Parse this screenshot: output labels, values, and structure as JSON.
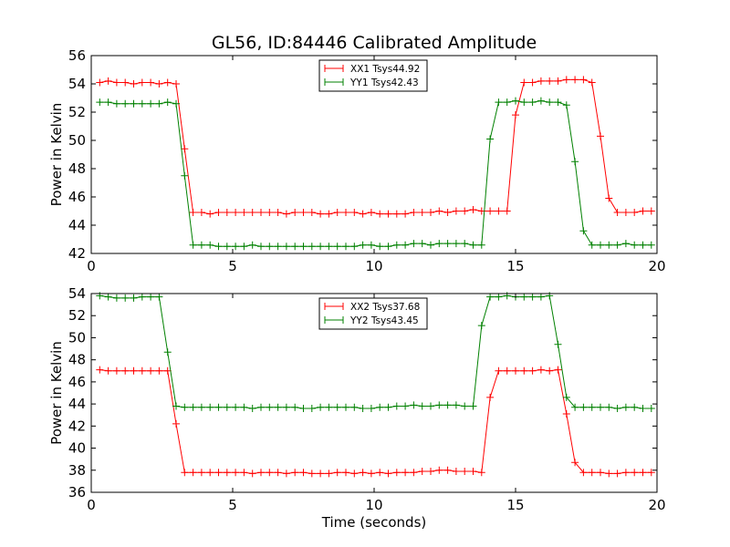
{
  "title": "GL56, ID:84446 Calibrated Amplitude",
  "chart_data": [
    {
      "type": "line",
      "xlabel": "",
      "ylabel": "Power in Kelvin",
      "xlim": [
        0,
        20
      ],
      "ylim": [
        42,
        56
      ],
      "xticks": [
        0,
        5,
        10,
        15,
        20
      ],
      "yticks": [
        42,
        44,
        46,
        48,
        50,
        52,
        54,
        56
      ],
      "grid": false,
      "legend_position": "top-center",
      "x": [
        0.3,
        0.6,
        0.9,
        1.2,
        1.5,
        1.8,
        2.1,
        2.4,
        2.7,
        3.0,
        3.3,
        3.6,
        3.9,
        4.2,
        4.5,
        4.8,
        5.1,
        5.4,
        5.7,
        6.0,
        6.3,
        6.6,
        6.9,
        7.2,
        7.5,
        7.8,
        8.1,
        8.4,
        8.7,
        9.0,
        9.3,
        9.6,
        9.9,
        10.2,
        10.5,
        10.8,
        11.1,
        11.4,
        11.7,
        12.0,
        12.3,
        12.6,
        12.9,
        13.2,
        13.5,
        13.8,
        14.1,
        14.4,
        14.7,
        15.0,
        15.3,
        15.6,
        15.9,
        16.2,
        16.5,
        16.8,
        17.1,
        17.4,
        17.7,
        18.0,
        18.3,
        18.6,
        18.9,
        19.2,
        19.5,
        19.8
      ],
      "series": [
        {
          "name": "XX1 Tsys44.92",
          "color": "#ff0000",
          "values": [
            54.1,
            54.2,
            54.1,
            54.1,
            54.0,
            54.1,
            54.1,
            54.0,
            54.1,
            54.0,
            49.4,
            44.9,
            44.9,
            44.8,
            44.9,
            44.9,
            44.9,
            44.9,
            44.9,
            44.9,
            44.9,
            44.9,
            44.8,
            44.9,
            44.9,
            44.9,
            44.8,
            44.8,
            44.9,
            44.9,
            44.9,
            44.8,
            44.9,
            44.8,
            44.8,
            44.8,
            44.8,
            44.9,
            44.9,
            44.9,
            45.0,
            44.9,
            45.0,
            45.0,
            45.1,
            45.0,
            45.0,
            45.0,
            45.0,
            51.8,
            54.1,
            54.1,
            54.2,
            54.2,
            54.2,
            54.3,
            54.3,
            54.3,
            54.1,
            50.3,
            45.9,
            44.9,
            44.9,
            44.9,
            45.0,
            45.0
          ]
        },
        {
          "name": "YY1 Tsys42.43",
          "color": "#008000",
          "values": [
            52.7,
            52.7,
            52.6,
            52.6,
            52.6,
            52.6,
            52.6,
            52.6,
            52.7,
            52.6,
            47.5,
            42.6,
            42.6,
            42.6,
            42.5,
            42.5,
            42.5,
            42.5,
            42.6,
            42.5,
            42.5,
            42.5,
            42.5,
            42.5,
            42.5,
            42.5,
            42.5,
            42.5,
            42.5,
            42.5,
            42.5,
            42.6,
            42.6,
            42.5,
            42.5,
            42.6,
            42.6,
            42.7,
            42.7,
            42.6,
            42.7,
            42.7,
            42.7,
            42.7,
            42.6,
            42.6,
            50.1,
            52.7,
            52.7,
            52.8,
            52.7,
            52.7,
            52.8,
            52.7,
            52.7,
            52.5,
            48.5,
            43.6,
            42.6,
            42.6,
            42.6,
            42.6,
            42.7,
            42.6,
            42.6,
            42.6
          ]
        }
      ]
    },
    {
      "type": "line",
      "xlabel": "Time (seconds)",
      "ylabel": "Power in Kelvin",
      "xlim": [
        0,
        20
      ],
      "ylim": [
        36,
        54
      ],
      "xticks": [
        0,
        5,
        10,
        15,
        20
      ],
      "yticks": [
        36,
        38,
        40,
        42,
        44,
        46,
        48,
        50,
        52,
        54
      ],
      "grid": false,
      "legend_position": "top-center",
      "x": [
        0.3,
        0.6,
        0.9,
        1.2,
        1.5,
        1.8,
        2.1,
        2.4,
        2.7,
        3.0,
        3.3,
        3.6,
        3.9,
        4.2,
        4.5,
        4.8,
        5.1,
        5.4,
        5.7,
        6.0,
        6.3,
        6.6,
        6.9,
        7.2,
        7.5,
        7.8,
        8.1,
        8.4,
        8.7,
        9.0,
        9.3,
        9.6,
        9.9,
        10.2,
        10.5,
        10.8,
        11.1,
        11.4,
        11.7,
        12.0,
        12.3,
        12.6,
        12.9,
        13.2,
        13.5,
        13.8,
        14.1,
        14.4,
        14.7,
        15.0,
        15.3,
        15.6,
        15.9,
        16.2,
        16.5,
        16.8,
        17.1,
        17.4,
        17.7,
        18.0,
        18.3,
        18.6,
        18.9,
        19.2,
        19.5,
        19.8
      ],
      "series": [
        {
          "name": "XX2 Tsys37.68",
          "color": "#ff0000",
          "values": [
            47.1,
            47.0,
            47.0,
            47.0,
            47.0,
            47.0,
            47.0,
            47.0,
            47.0,
            42.2,
            37.8,
            37.8,
            37.8,
            37.8,
            37.8,
            37.8,
            37.8,
            37.8,
            37.7,
            37.8,
            37.8,
            37.8,
            37.7,
            37.8,
            37.8,
            37.7,
            37.7,
            37.7,
            37.8,
            37.8,
            37.7,
            37.8,
            37.7,
            37.8,
            37.7,
            37.8,
            37.8,
            37.8,
            37.9,
            37.9,
            38.0,
            38.0,
            37.9,
            37.9,
            37.9,
            37.8,
            44.6,
            47.0,
            47.0,
            47.0,
            47.0,
            47.0,
            47.1,
            47.0,
            47.1,
            43.1,
            38.7,
            37.8,
            37.8,
            37.8,
            37.7,
            37.7,
            37.8,
            37.8,
            37.8,
            37.8
          ]
        },
        {
          "name": "YY2 Tsys43.45",
          "color": "#008000",
          "values": [
            53.8,
            53.7,
            53.6,
            53.6,
            53.6,
            53.7,
            53.7,
            53.7,
            48.7,
            43.8,
            43.7,
            43.7,
            43.7,
            43.7,
            43.7,
            43.7,
            43.7,
            43.7,
            43.6,
            43.7,
            43.7,
            43.7,
            43.7,
            43.7,
            43.6,
            43.6,
            43.7,
            43.7,
            43.7,
            43.7,
            43.7,
            43.6,
            43.6,
            43.7,
            43.7,
            43.8,
            43.8,
            43.9,
            43.8,
            43.8,
            43.9,
            43.9,
            43.9,
            43.8,
            43.8,
            51.1,
            53.7,
            53.7,
            53.8,
            53.7,
            53.7,
            53.7,
            53.7,
            53.8,
            49.4,
            44.6,
            43.7,
            43.7,
            43.7,
            43.7,
            43.7,
            43.6,
            43.7,
            43.7,
            43.6,
            43.6
          ]
        }
      ]
    }
  ]
}
